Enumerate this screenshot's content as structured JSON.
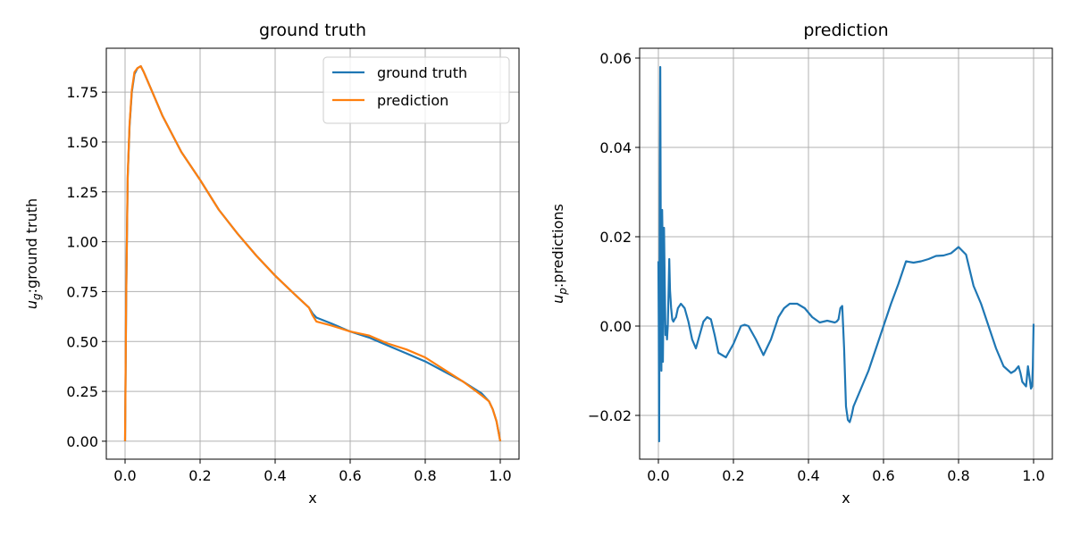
{
  "chart_data": [
    {
      "type": "line",
      "title": "ground truth",
      "xlabel": "x",
      "ylabel_main": "u",
      "ylabel_sub": "g",
      "ylabel_rest": ":ground truth",
      "xlim": [
        -0.05,
        1.05
      ],
      "ylim": [
        -0.09,
        1.97
      ],
      "xticks": [
        0.0,
        0.2,
        0.4,
        0.6,
        0.8,
        1.0
      ],
      "xtick_labels": [
        "0.0",
        "0.2",
        "0.4",
        "0.6",
        "0.8",
        "1.0"
      ],
      "yticks": [
        0.0,
        0.25,
        0.5,
        0.75,
        1.0,
        1.25,
        1.5,
        1.75
      ],
      "ytick_labels": [
        "0.00",
        "0.25",
        "0.50",
        "0.75",
        "1.00",
        "1.25",
        "1.50",
        "1.75"
      ],
      "grid": true,
      "legend": "top-right",
      "series": [
        {
          "name": "ground truth",
          "color": "#1f77b4",
          "x": [
            0.0,
            0.003,
            0.007,
            0.012,
            0.018,
            0.025,
            0.033,
            0.042,
            0.05,
            0.075,
            0.1,
            0.15,
            0.2,
            0.25,
            0.3,
            0.35,
            0.4,
            0.45,
            0.49,
            0.5,
            0.51,
            0.55,
            0.6,
            0.65,
            0.7,
            0.75,
            0.8,
            0.85,
            0.9,
            0.95,
            0.97,
            0.98,
            0.99,
            0.995,
            1.0
          ],
          "y": [
            0.0,
            0.72,
            1.32,
            1.58,
            1.75,
            1.84,
            1.87,
            1.88,
            1.85,
            1.74,
            1.63,
            1.45,
            1.31,
            1.16,
            1.04,
            0.93,
            0.83,
            0.74,
            0.67,
            0.64,
            0.62,
            0.59,
            0.55,
            0.52,
            0.48,
            0.44,
            0.4,
            0.35,
            0.3,
            0.24,
            0.2,
            0.16,
            0.1,
            0.05,
            0.0
          ]
        },
        {
          "name": "prediction",
          "color": "#ff7f0e",
          "x": [
            0.0,
            0.003,
            0.007,
            0.012,
            0.018,
            0.025,
            0.033,
            0.042,
            0.05,
            0.075,
            0.1,
            0.15,
            0.2,
            0.25,
            0.3,
            0.35,
            0.4,
            0.45,
            0.49,
            0.5,
            0.51,
            0.55,
            0.6,
            0.65,
            0.7,
            0.75,
            0.8,
            0.85,
            0.9,
            0.95,
            0.97,
            0.98,
            0.99,
            0.995,
            1.0
          ],
          "y": [
            0.0,
            0.73,
            1.33,
            1.59,
            1.76,
            1.85,
            1.87,
            1.88,
            1.85,
            1.74,
            1.63,
            1.45,
            1.31,
            1.16,
            1.04,
            0.93,
            0.83,
            0.74,
            0.67,
            0.63,
            0.6,
            0.58,
            0.55,
            0.53,
            0.49,
            0.46,
            0.42,
            0.36,
            0.3,
            0.23,
            0.2,
            0.16,
            0.1,
            0.05,
            0.0
          ]
        }
      ]
    },
    {
      "type": "line",
      "title": "prediction",
      "xlabel": "x",
      "ylabel_main": "u",
      "ylabel_sub": "p",
      "ylabel_rest": ":predictions",
      "xlim": [
        -0.05,
        1.05
      ],
      "ylim": [
        -0.0298,
        0.0622
      ],
      "xticks": [
        0.0,
        0.2,
        0.4,
        0.6,
        0.8,
        1.0
      ],
      "xtick_labels": [
        "0.0",
        "0.2",
        "0.4",
        "0.6",
        "0.8",
        "1.0"
      ],
      "yticks": [
        -0.02,
        0.0,
        0.02,
        0.04,
        0.06
      ],
      "ytick_labels": [
        "−0.02",
        "0.00",
        "0.02",
        "0.04",
        "0.06"
      ],
      "grid": true,
      "series": [
        {
          "color": "#1f77b4",
          "x": [
            0.0,
            0.001,
            0.002,
            0.003,
            0.004,
            0.005,
            0.006,
            0.007,
            0.008,
            0.009,
            0.01,
            0.011,
            0.012,
            0.013,
            0.015,
            0.017,
            0.019,
            0.021,
            0.023,
            0.025,
            0.027,
            0.029,
            0.031,
            0.034,
            0.037,
            0.04,
            0.043,
            0.047,
            0.052,
            0.06,
            0.07,
            0.08,
            0.09,
            0.1,
            0.11,
            0.12,
            0.13,
            0.14,
            0.15,
            0.16,
            0.18,
            0.2,
            0.22,
            0.23,
            0.24,
            0.26,
            0.28,
            0.3,
            0.32,
            0.335,
            0.35,
            0.37,
            0.39,
            0.41,
            0.43,
            0.45,
            0.47,
            0.475,
            0.48,
            0.485,
            0.49,
            0.495,
            0.5,
            0.505,
            0.51,
            0.515,
            0.52,
            0.54,
            0.56,
            0.58,
            0.6,
            0.62,
            0.64,
            0.66,
            0.68,
            0.7,
            0.72,
            0.74,
            0.76,
            0.78,
            0.8,
            0.82,
            0.84,
            0.86,
            0.88,
            0.9,
            0.92,
            0.94,
            0.95,
            0.96,
            0.965,
            0.97,
            0.975,
            0.98,
            0.985,
            0.99,
            0.993,
            0.996,
            0.998,
            1.0
          ],
          "y": [
            0.0145,
            0.0,
            -0.0258,
            0.005,
            0.038,
            0.058,
            0.03,
            0.004,
            -0.01,
            0.012,
            0.026,
            0.02,
            -0.008,
            0.0,
            0.022,
            0.009,
            -0.002,
            0.0,
            -0.003,
            0.0,
            0.007,
            0.015,
            0.008,
            0.004,
            0.0015,
            0.001,
            0.0015,
            0.002,
            0.004,
            0.005,
            0.004,
            0.001,
            -0.003,
            -0.005,
            -0.002,
            0.001,
            0.002,
            0.0015,
            -0.002,
            -0.006,
            -0.007,
            -0.004,
            0.0,
            0.0003,
            0.0,
            -0.003,
            -0.0065,
            -0.003,
            0.002,
            0.004,
            0.005,
            0.005,
            0.004,
            0.002,
            0.0008,
            0.0012,
            0.0008,
            0.001,
            0.0015,
            0.004,
            0.0045,
            -0.005,
            -0.018,
            -0.021,
            -0.0215,
            -0.02,
            -0.018,
            -0.014,
            -0.01,
            -0.005,
            0.0,
            0.005,
            0.0095,
            0.0145,
            0.0142,
            0.0145,
            0.015,
            0.0157,
            0.0158,
            0.0163,
            0.0177,
            0.016,
            0.009,
            0.005,
            0.0,
            -0.005,
            -0.009,
            -0.0105,
            -0.01,
            -0.009,
            -0.0105,
            -0.0125,
            -0.013,
            -0.0135,
            -0.009,
            -0.012,
            -0.014,
            -0.0135,
            -0.009,
            0.0005
          ]
        }
      ]
    }
  ]
}
